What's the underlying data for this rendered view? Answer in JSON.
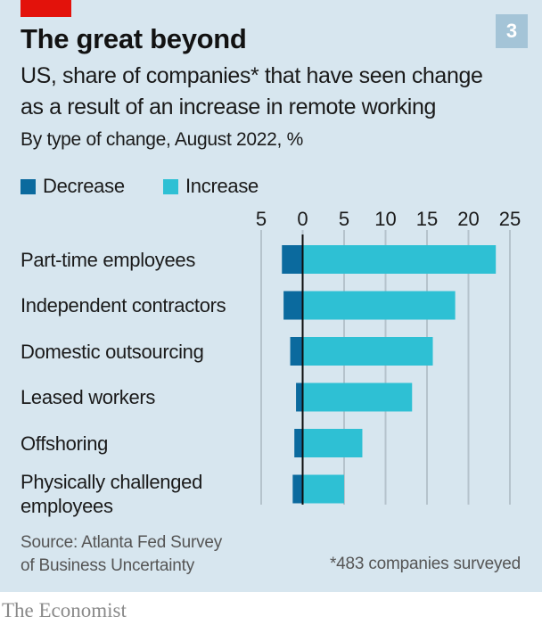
{
  "badge": "3",
  "title": "The great beyond",
  "subtitle_lines": [
    "US, share of companies* that have seen change",
    "as a result of an increase in remote working"
  ],
  "subtitle2": "By type of change, August 2022, %",
  "source_lines": [
    "Source: Atlanta Fed Survey",
    "of Business Uncertainty"
  ],
  "note": "*483 companies surveyed",
  "brand": "The Economist",
  "colors": {
    "decrease": "#0b6a9e",
    "increase": "#2ec0d4",
    "background": "#d7e6ef",
    "accent_red": "#e3120b"
  },
  "chart_data": {
    "type": "bar",
    "orientation": "horizontal",
    "title": "The great beyond",
    "xlabel": "",
    "ylabel": "",
    "xlim": [
      -5,
      25
    ],
    "x_ticks": [
      -5,
      0,
      5,
      10,
      15,
      20,
      25
    ],
    "x_tick_labels": [
      "5",
      "0",
      "5",
      "10",
      "15",
      "20",
      "25"
    ],
    "grid": true,
    "legend_position": "top-left",
    "categories": [
      "Part-time employees",
      "Independent contractors",
      "Domestic outsourcing",
      "Leased workers",
      "Offshoring",
      "Physically challenged employees"
    ],
    "category_lines": [
      [
        "Part-time employees"
      ],
      [
        "Independent contractors"
      ],
      [
        "Domestic outsourcing"
      ],
      [
        "Leased workers"
      ],
      [
        "Offshoring"
      ],
      [
        "Physically challenged",
        "employees"
      ]
    ],
    "series": [
      {
        "name": "Decrease",
        "values": [
          -2.5,
          -2.3,
          -1.5,
          -0.8,
          -1.0,
          -1.2
        ]
      },
      {
        "name": "Increase",
        "values": [
          23.3,
          18.4,
          15.7,
          13.2,
          7.2,
          5.0
        ]
      }
    ]
  }
}
